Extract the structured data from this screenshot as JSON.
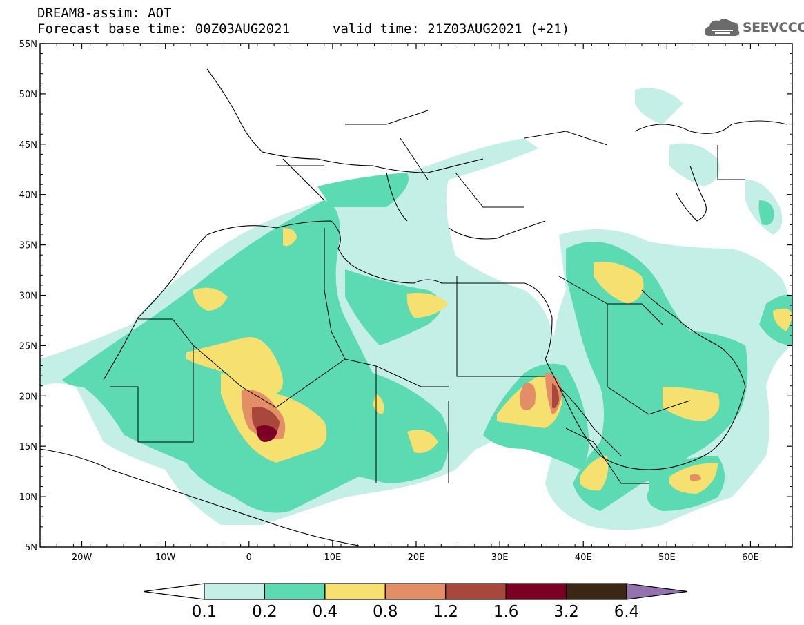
{
  "header": {
    "title_line1": "DREAM8-assim: AOT",
    "title_line2": "Forecast base time: 00Z03AUG2021",
    "valid_time": "valid time: 21Z03AUG2021 (+21)",
    "logo_text": "SEEVCCC",
    "logo_icon": "cloud-icon"
  },
  "map": {
    "lon_range": [
      -25,
      65
    ],
    "lat_range": [
      5,
      55
    ],
    "lon_ticks": [
      {
        "value": -20,
        "label": "20W"
      },
      {
        "value": -10,
        "label": "10W"
      },
      {
        "value": 0,
        "label": "0"
      },
      {
        "value": 10,
        "label": "10E"
      },
      {
        "value": 20,
        "label": "20E"
      },
      {
        "value": 30,
        "label": "30E"
      },
      {
        "value": 40,
        "label": "40E"
      },
      {
        "value": 50,
        "label": "50E"
      },
      {
        "value": 60,
        "label": "60E"
      }
    ],
    "lat_ticks": [
      {
        "value": 55,
        "label": "55N"
      },
      {
        "value": 50,
        "label": "50N"
      },
      {
        "value": 45,
        "label": "45N"
      },
      {
        "value": 40,
        "label": "40N"
      },
      {
        "value": 35,
        "label": "35N"
      },
      {
        "value": 30,
        "label": "30N"
      },
      {
        "value": 25,
        "label": "25N"
      },
      {
        "value": 20,
        "label": "20N"
      },
      {
        "value": 15,
        "label": "15N"
      },
      {
        "value": 10,
        "label": "10N"
      },
      {
        "value": 5,
        "label": "5N"
      }
    ]
  },
  "colorbar": {
    "levels": [
      {
        "label": "0.1",
        "value": 0.1
      },
      {
        "label": "0.2",
        "value": 0.2
      },
      {
        "label": "0.4",
        "value": 0.4
      },
      {
        "label": "0.8",
        "value": 0.8
      },
      {
        "label": "1.2",
        "value": 1.2
      },
      {
        "label": "1.6",
        "value": 1.6
      },
      {
        "label": "3.2",
        "value": 3.2
      },
      {
        "label": "6.4",
        "value": 6.4
      }
    ],
    "colors": [
      "#ffffff",
      "#c4efe6",
      "#5cdab2",
      "#f5e070",
      "#e38e66",
      "#a9473d",
      "#7c0024",
      "#3c2614",
      "#9472ad"
    ]
  }
}
